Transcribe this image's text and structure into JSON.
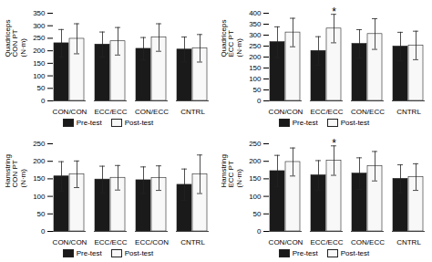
{
  "chart_data": [
    {
      "type": "bar",
      "ylabel": "Quadriceps\nCON PT\n(N·m)",
      "categories": [
        "CON/CON",
        "ECC/ECC",
        "CON/ECC",
        "CNTRL"
      ],
      "series": [
        {
          "name": "Pre-test",
          "color": "#1a1a1a",
          "values": [
            230,
            225,
            208,
            205
          ],
          "errors": [
            55,
            50,
            45,
            50
          ]
        },
        {
          "name": "Post-test",
          "color": "#f8f8f8",
          "values": [
            248,
            238,
            253,
            210
          ],
          "errors": [
            60,
            55,
            55,
            55
          ]
        }
      ],
      "ylim": [
        0,
        350
      ],
      "yticks": [
        0,
        50,
        100,
        150,
        200,
        250,
        300,
        350
      ],
      "grid": false,
      "legend": "bottom",
      "annotations": []
    },
    {
      "type": "bar",
      "ylabel": "Quadriceps\nECC PT\n(N·m)",
      "categories": [
        "CON/CON",
        "ECC/ECC",
        "CON/ECC",
        "CNTRL"
      ],
      "series": [
        {
          "name": "Pre-test",
          "color": "#1a1a1a",
          "values": [
            268,
            228,
            260,
            248
          ],
          "errors": [
            70,
            65,
            65,
            65
          ]
        },
        {
          "name": "Post-test",
          "color": "#f8f8f8",
          "values": [
            312,
            330,
            305,
            253
          ],
          "errors": [
            65,
            65,
            70,
            65
          ]
        }
      ],
      "ylim": [
        0,
        400
      ],
      "yticks": [
        0,
        50,
        100,
        150,
        200,
        250,
        300,
        350,
        400
      ],
      "grid": false,
      "legend": "bottom",
      "annotations": [
        {
          "text": "*",
          "category": "ECC/ECC",
          "series": "Post-test"
        }
      ]
    },
    {
      "type": "bar",
      "ylabel": "Hamstring\nCON PT\n(N·m)",
      "categories": [
        "CON/CON",
        "ECC/ECC",
        "ECC/CON",
        "CNTRL"
      ],
      "series": [
        {
          "name": "Pre-test",
          "color": "#1a1a1a",
          "values": [
            157,
            148,
            146,
            133
          ],
          "errors": [
            42,
            38,
            38,
            45
          ]
        },
        {
          "name": "Post-test",
          "color": "#f8f8f8",
          "values": [
            163,
            153,
            152,
            163
          ],
          "errors": [
            38,
            35,
            35,
            55
          ]
        }
      ],
      "ylim": [
        0,
        250
      ],
      "yticks": [
        0,
        50,
        100,
        150,
        200,
        250
      ],
      "grid": false,
      "legend": "bottom",
      "annotations": []
    },
    {
      "type": "bar",
      "ylabel": "Hamstring\nECC PT\n(N·m)",
      "categories": [
        "CON/CON",
        "ECC/ECC",
        "CON/ECC",
        "CNTRL"
      ],
      "series": [
        {
          "name": "Pre-test",
          "color": "#1a1a1a",
          "values": [
            172,
            160,
            165,
            150
          ],
          "errors": [
            45,
            42,
            45,
            40
          ]
        },
        {
          "name": "Post-test",
          "color": "#f8f8f8",
          "values": [
            198,
            202,
            186,
            155
          ],
          "errors": [
            40,
            42,
            42,
            38
          ]
        }
      ],
      "ylim": [
        0,
        250
      ],
      "yticks": [
        0,
        50,
        100,
        150,
        200,
        250
      ],
      "grid": false,
      "legend": "bottom",
      "annotations": [
        {
          "text": "*",
          "category": "ECC/ECC",
          "series": "Post-test"
        }
      ]
    }
  ]
}
